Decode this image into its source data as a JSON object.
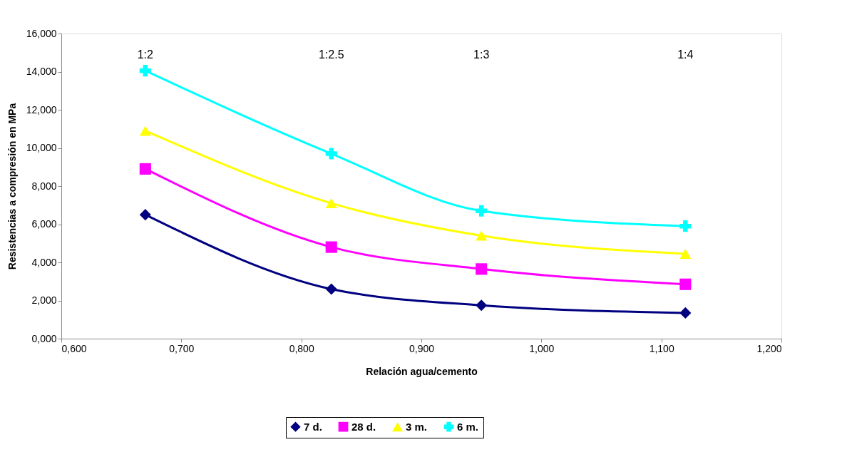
{
  "chart_data": {
    "type": "line",
    "xlabel": "Relación agua/cemento",
    "ylabel": "Resistencias a compresión en MPa",
    "x": [
      0.67,
      0.825,
      0.95,
      1.12
    ],
    "series": [
      {
        "name": "7 d.",
        "color": "#000080",
        "marker": "diamond",
        "values": [
          6.5,
          2.6,
          1.75,
          1.35
        ]
      },
      {
        "name": "28 d.",
        "color": "#ff00ff",
        "marker": "square",
        "values": [
          8.9,
          4.8,
          3.65,
          2.85
        ]
      },
      {
        "name": "3 m.",
        "color": "#ffff00",
        "marker": "triangle",
        "values": [
          10.9,
          7.1,
          5.4,
          4.45
        ]
      },
      {
        "name": "6 m.",
        "color": "#00ffff",
        "marker": "cross",
        "values": [
          14.05,
          9.7,
          6.7,
          5.9
        ]
      }
    ],
    "xlim": [
      0.6,
      1.2
    ],
    "xticks": [
      {
        "value": 0.6,
        "label": "0,600"
      },
      {
        "value": 0.7,
        "label": "0,700"
      },
      {
        "value": 0.8,
        "label": "0,800"
      },
      {
        "value": 0.9,
        "label": "0,900"
      },
      {
        "value": 1.0,
        "label": "1,000"
      },
      {
        "value": 1.1,
        "label": "1,100"
      },
      {
        "value": 1.2,
        "label": "1,200"
      }
    ],
    "ylim": [
      0,
      16
    ],
    "yticks": [
      {
        "value": 0,
        "label": "0,000"
      },
      {
        "value": 2,
        "label": "2,000"
      },
      {
        "value": 4,
        "label": "4,000"
      },
      {
        "value": 6,
        "label": "6,000"
      },
      {
        "value": 8,
        "label": "8,000"
      },
      {
        "value": 10,
        "label": "10,000"
      },
      {
        "value": 12,
        "label": "12,000"
      },
      {
        "value": 14,
        "label": "14,000"
      },
      {
        "value": 16,
        "label": "16,000"
      }
    ],
    "annotations": [
      "1:2",
      "1:2.5",
      "1:3",
      "1:4"
    ],
    "grid": false,
    "legend": "bottom",
    "line_style": "solid"
  }
}
